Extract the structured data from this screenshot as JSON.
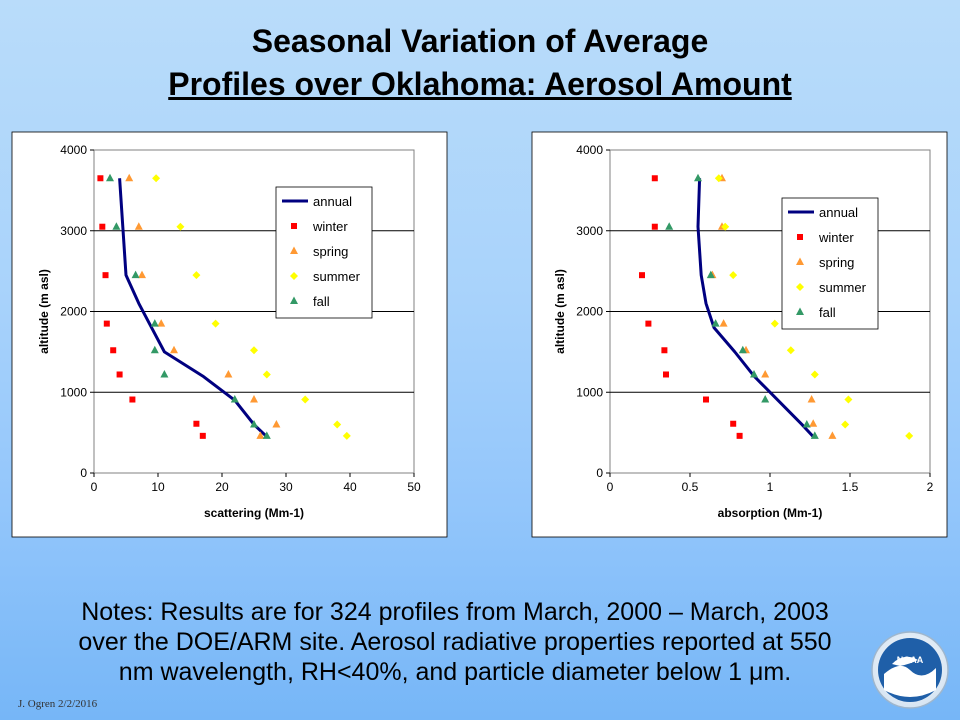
{
  "slide": {
    "title_line1": "Seasonal Variation of Average",
    "title_line2": "Profiles over Oklahoma: Aerosol Amount",
    "notes_line1": "Notes:  Results are for 324 profiles from March, 2000 – March, 2003",
    "notes_line2": "over the DOE/ARM site.  Aerosol radiative properties reported at 550",
    "notes_line3": "nm wavelength, RH<40%, and particle diameter below 1 ",
    "notes_mu": "μ",
    "notes_tail": "m.",
    "footer": "J. Ogren  2/2/2016",
    "logo_text": "NOAA"
  },
  "colors": {
    "annual": "#000080",
    "winter": "#ff0000",
    "spring": "#ff9933",
    "summer": "#ffff00",
    "fall": "#339966",
    "plot_bg": "#ffffff",
    "outer_bg": "#ffffff"
  },
  "chart_data": [
    {
      "type": "scatter",
      "xlabel": "scattering (Mm-1)",
      "ylabel": "altitude (m asl)",
      "xlim": [
        0,
        50
      ],
      "ylim": [
        0,
        4000
      ],
      "xticks": [
        "0",
        "10",
        "20",
        "30",
        "40",
        "50"
      ],
      "yticks": [
        "0",
        "1000",
        "2000",
        "3000",
        "4000"
      ],
      "grid": "horizontal",
      "legend_position": "center-right",
      "legend": [
        "annual",
        "winter",
        "spring",
        "summer",
        "fall"
      ],
      "series": [
        {
          "name": "annual",
          "marker": "line",
          "x": [
            27,
            25,
            22,
            17,
            11,
            9,
            7,
            5,
            4.5,
            4
          ],
          "y": [
            450,
            600,
            900,
            1200,
            1500,
            1800,
            2100,
            2450,
            3050,
            3650
          ]
        },
        {
          "name": "winter",
          "marker": "square",
          "x": [
            1,
            1.3,
            1.8,
            2,
            3,
            4,
            6,
            16,
            17
          ],
          "y": [
            3650,
            3050,
            2450,
            1850,
            1520,
            1220,
            910,
            610,
            460
          ]
        },
        {
          "name": "spring",
          "marker": "triangle",
          "x": [
            5.5,
            7,
            7.5,
            10.5,
            12.5,
            21,
            25,
            26,
            28.5
          ],
          "y": [
            3650,
            3050,
            2450,
            1850,
            1520,
            1220,
            910,
            460,
            600
          ]
        },
        {
          "name": "summer",
          "marker": "diamond",
          "x": [
            9.7,
            13.5,
            16,
            19,
            25,
            27,
            33,
            38,
            39.5
          ],
          "y": [
            3650,
            3050,
            2450,
            1850,
            1520,
            1220,
            910,
            600,
            460
          ]
        },
        {
          "name": "fall",
          "marker": "triangle",
          "x": [
            2.5,
            3.5,
            6.5,
            9.5,
            9.5,
            11,
            22,
            25,
            27
          ],
          "y": [
            3650,
            3050,
            2450,
            1850,
            1520,
            1220,
            910,
            600,
            460
          ]
        }
      ]
    },
    {
      "type": "scatter",
      "xlabel": "absorption (Mm-1)",
      "ylabel": "altitude (m asl)",
      "xlim": [
        0,
        2
      ],
      "ylim": [
        0,
        4000
      ],
      "xticks": [
        "0",
        "0.5",
        "1",
        "1.5",
        "2"
      ],
      "yticks": [
        "0",
        "1000",
        "2000",
        "3000",
        "4000"
      ],
      "grid": "horizontal",
      "legend_position": "top-right",
      "legend": [
        "annual",
        "winter",
        "spring",
        "summer",
        "fall"
      ],
      "series": [
        {
          "name": "annual",
          "marker": "line",
          "x": [
            1.27,
            1.2,
            1.05,
            0.9,
            0.78,
            0.65,
            0.6,
            0.57,
            0.55,
            0.56
          ],
          "y": [
            450,
            600,
            900,
            1200,
            1500,
            1800,
            2100,
            2450,
            3050,
            3650
          ]
        },
        {
          "name": "winter",
          "marker": "square",
          "x": [
            0.28,
            0.28,
            0.2,
            0.24,
            0.34,
            0.35,
            0.6,
            0.77,
            0.81
          ],
          "y": [
            3650,
            3050,
            2450,
            1850,
            1520,
            1220,
            910,
            610,
            460
          ]
        },
        {
          "name": "spring",
          "marker": "triangle",
          "x": [
            0.7,
            0.7,
            0.64,
            0.71,
            0.85,
            0.97,
            1.26,
            1.27,
            1.39
          ],
          "y": [
            3650,
            3050,
            2450,
            1850,
            1520,
            1220,
            910,
            610,
            460
          ]
        },
        {
          "name": "summer",
          "marker": "diamond",
          "x": [
            0.68,
            0.72,
            0.77,
            1.03,
            1.13,
            1.28,
            1.49,
            1.47,
            1.87
          ],
          "y": [
            3650,
            3050,
            2450,
            1850,
            1520,
            1220,
            910,
            600,
            460
          ]
        },
        {
          "name": "fall",
          "marker": "triangle",
          "x": [
            0.55,
            0.37,
            0.63,
            0.66,
            0.83,
            0.9,
            0.97,
            1.23,
            1.28
          ],
          "y": [
            3650,
            3050,
            2450,
            1850,
            1520,
            1220,
            910,
            600,
            460
          ]
        }
      ]
    }
  ]
}
